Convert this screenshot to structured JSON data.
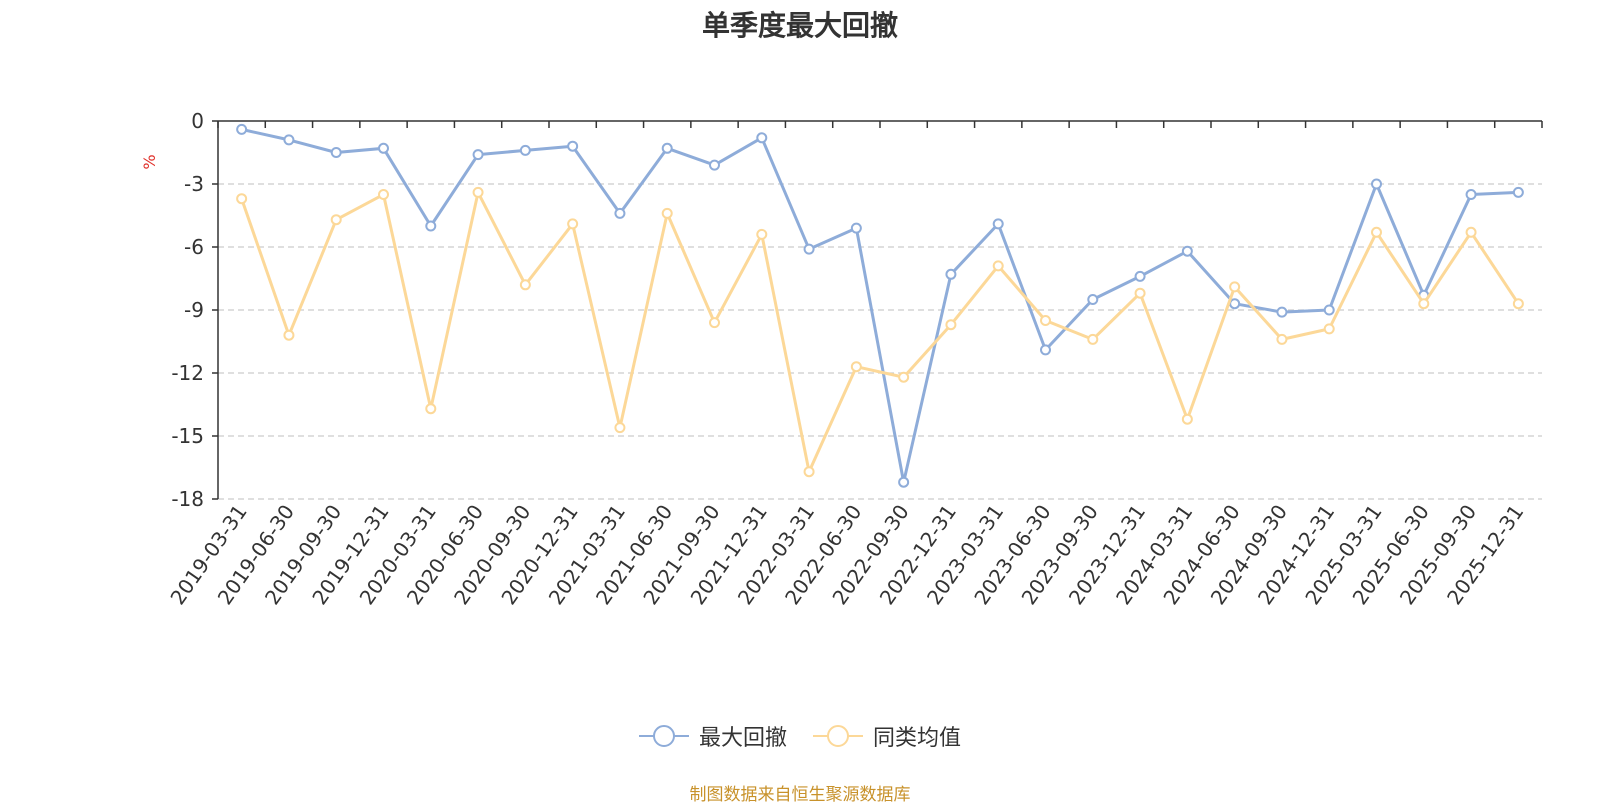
{
  "chart_data": {
    "type": "line",
    "title": "单季度最大回撤",
    "ylabel": "%",
    "ylim": [
      -18,
      0
    ],
    "yticks": [
      0,
      -3,
      -6,
      -9,
      -12,
      -15,
      -18
    ],
    "grid": true,
    "legend_position": "bottom-center",
    "categories": [
      "2019-03-31",
      "2019-06-30",
      "2019-09-30",
      "2019-12-31",
      "2020-03-31",
      "2020-06-30",
      "2020-09-30",
      "2020-12-31",
      "2021-03-31",
      "2021-06-30",
      "2021-09-30",
      "2021-12-31",
      "2022-03-31",
      "2022-06-30",
      "2022-09-30",
      "2022-12-31",
      "2023-03-31",
      "2023-06-30",
      "2023-09-30",
      "2023-12-31",
      "2024-03-31",
      "2024-06-30",
      "2024-09-30",
      "2024-12-31",
      "2025-03-31",
      "2025-06-30",
      "2025-09-30",
      "2025-12-31"
    ],
    "series": [
      {
        "name": "最大回撤",
        "color": "#8eacd9",
        "values": [
          -0.4,
          -0.9,
          -1.5,
          -1.3,
          -5.0,
          -1.6,
          -1.4,
          -1.2,
          -4.4,
          -1.3,
          -2.1,
          -0.8,
          -6.1,
          -5.1,
          -17.2,
          -7.3,
          -4.9,
          -10.9,
          -8.5,
          -7.4,
          -6.2,
          -8.7,
          -9.1,
          -9.0,
          -3.0,
          -8.3,
          -3.5,
          -3.4
        ]
      },
      {
        "name": "同类均值",
        "color": "#fcd898",
        "values": [
          -3.7,
          -10.2,
          -4.7,
          -3.5,
          -13.7,
          -3.4,
          -7.8,
          -4.9,
          -14.6,
          -4.4,
          -9.6,
          -5.4,
          -16.7,
          -11.7,
          -12.2,
          -9.7,
          -6.9,
          -9.5,
          -10.4,
          -8.2,
          -14.2,
          -7.9,
          -10.4,
          -9.9,
          -5.3,
          -8.7,
          -5.3,
          -8.7
        ]
      }
    ]
  },
  "legend": [
    {
      "label": "最大回撤",
      "color": "#8eacd9"
    },
    {
      "label": "同类均值",
      "color": "#fcd898"
    }
  ],
  "footer": "制图数据来自恒生聚源数据库"
}
